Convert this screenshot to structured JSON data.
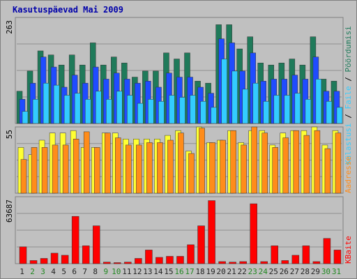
{
  "chart_data": [
    {
      "type": "bar",
      "title": "Kasutuspäevad Mai 2009",
      "categories": [
        "1",
        "2",
        "3",
        "4",
        "5",
        "6",
        "7",
        "8",
        "9",
        "10",
        "11",
        "12",
        "13",
        "14",
        "15",
        "16",
        "17",
        "18",
        "19",
        "20",
        "21",
        "22",
        "23",
        "24",
        "25",
        "26",
        "27",
        "28",
        "29",
        "30",
        "31"
      ],
      "ylim": [
        0,
        263
      ],
      "y_tick_label": "263",
      "legend_placement": "right",
      "series": [
        {
          "name": "Pöördumisi",
          "color": "#1f7a5a",
          "values": [
            80,
            130,
            180,
            170,
            145,
            170,
            145,
            200,
            145,
            165,
            150,
            115,
            130,
            130,
            175,
            160,
            175,
            105,
            100,
            245,
            245,
            185,
            215,
            150,
            145,
            150,
            160,
            145,
            215,
            110,
            105
          ]
        },
        {
          "name": "Faile",
          "color": "#1f4cff",
          "values": [
            60,
            100,
            165,
            140,
            90,
            120,
            100,
            140,
            110,
            125,
            110,
            100,
            105,
            90,
            125,
            115,
            115,
            90,
            75,
            210,
            200,
            130,
            175,
            105,
            110,
            110,
            120,
            110,
            165,
            80,
            80
          ]
        },
        {
          "name": "Lehekülgi",
          "color": "#33ccff",
          "values": [
            30,
            60,
            100,
            95,
            70,
            75,
            60,
            80,
            60,
            80,
            70,
            50,
            60,
            55,
            70,
            65,
            70,
            55,
            40,
            160,
            130,
            85,
            100,
            55,
            70,
            70,
            75,
            60,
            110,
            55,
            40
          ]
        }
      ]
    },
    {
      "type": "bar",
      "ylim": [
        0,
        55
      ],
      "y_tick_label": "55",
      "series": [
        {
          "name": "Külastusi",
          "color": "#ffff33",
          "values": [
            38,
            32,
            44,
            50,
            50,
            52,
            38,
            38,
            50,
            50,
            45,
            45,
            45,
            45,
            48,
            52,
            35,
            55,
            42,
            44,
            52,
            42,
            52,
            52,
            40,
            50,
            52,
            52,
            55,
            40,
            52
          ]
        },
        {
          "name": "Aadresse",
          "color": "#ff8c1a",
          "values": [
            28,
            38,
            38,
            40,
            40,
            45,
            51,
            38,
            50,
            46,
            40,
            40,
            42,
            42,
            44,
            50,
            33,
            54,
            42,
            44,
            52,
            40,
            56,
            50,
            38,
            46,
            52,
            48,
            52,
            37,
            50
          ]
        }
      ]
    },
    {
      "type": "bar",
      "ylim": [
        0,
        63687
      ],
      "y_tick_label": "63687",
      "series": [
        {
          "name": "KBaite",
          "color": "#ff0000",
          "values": [
            16000,
            3000,
            5000,
            10000,
            8000,
            45000,
            17000,
            36000,
            1500,
            1000,
            1500,
            5000,
            13000,
            6000,
            7000,
            7000,
            18000,
            36000,
            60000,
            2000,
            1500,
            2000,
            57000,
            2000,
            17000,
            3000,
            8000,
            17000,
            2000,
            24000,
            13000
          ]
        }
      ]
    }
  ],
  "x_label_colors": {
    "weekday": "#222222",
    "weekend": "#228822"
  },
  "weekend_days": [
    "2",
    "3",
    "9",
    "10",
    "16",
    "17",
    "23",
    "24",
    "30",
    "31"
  ],
  "colors": {
    "frame_bg": "#c0c0c0",
    "outer_bg": "#ffffff",
    "title": "#0000aa"
  }
}
